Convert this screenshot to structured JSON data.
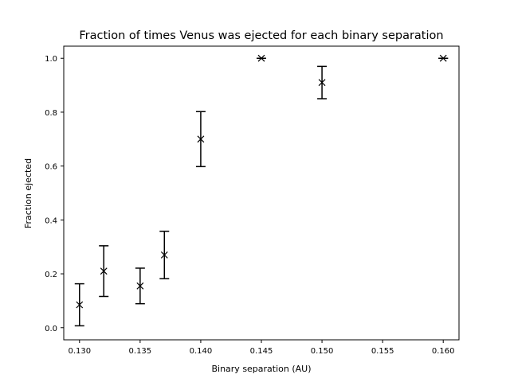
{
  "chart_data": {
    "type": "scatter",
    "title": "Fraction of times Venus was ejected for each binary separation",
    "xlabel": "Binary separation (AU)",
    "ylabel": "Fraction ejected",
    "xlim": [
      0.1287,
      0.1613
    ],
    "ylim": [
      -0.045,
      1.045
    ],
    "grid": false,
    "marker": "x",
    "color": "#000000",
    "xticks": [
      0.13,
      0.135,
      0.14,
      0.145,
      0.15,
      0.155,
      0.16
    ],
    "xtick_labels": [
      "0.130",
      "0.135",
      "0.140",
      "0.145",
      "0.150",
      "0.155",
      "0.160"
    ],
    "yticks": [
      0.0,
      0.2,
      0.4,
      0.6,
      0.8,
      1.0
    ],
    "ytick_labels": [
      "0.0",
      "0.2",
      "0.4",
      "0.6",
      "0.8",
      "1.0"
    ],
    "points": [
      {
        "x": 0.13,
        "y": 0.085,
        "err": 0.078
      },
      {
        "x": 0.132,
        "y": 0.21,
        "err": 0.094
      },
      {
        "x": 0.135,
        "y": 0.155,
        "err": 0.066
      },
      {
        "x": 0.137,
        "y": 0.27,
        "err": 0.088
      },
      {
        "x": 0.14,
        "y": 0.7,
        "err": 0.102
      },
      {
        "x": 0.145,
        "y": 1.0,
        "err": 0.0
      },
      {
        "x": 0.15,
        "y": 0.91,
        "err": 0.06
      },
      {
        "x": 0.16,
        "y": 1.0,
        "err": 0.0
      }
    ]
  }
}
